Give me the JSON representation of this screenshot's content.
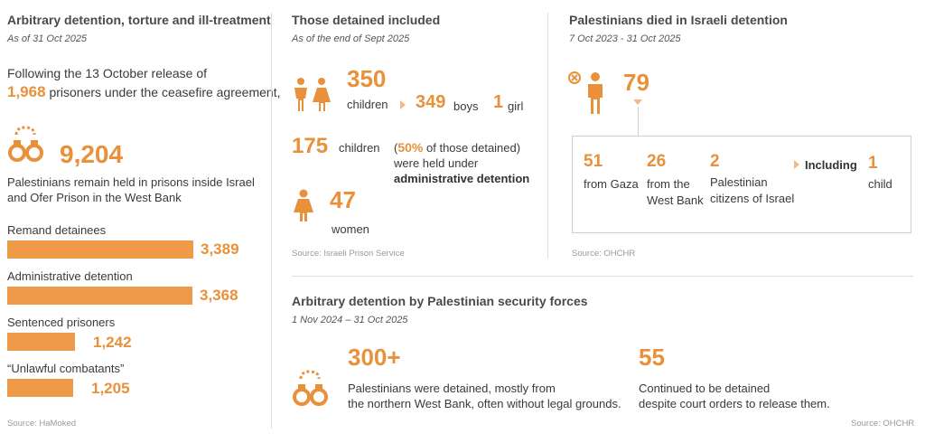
{
  "colors": {
    "accent": "#e8913a",
    "bar": "#ee9a48",
    "text": "#3a3a3a",
    "source": "#9a9a9a"
  },
  "col1": {
    "title": "Arbitrary detention, torture and ill-treatment",
    "subtitle": "As of 31 Oct 2025",
    "intro_line1": "Following the 13 October release of",
    "intro_number": "1,968",
    "intro_line2_rest": "prisoners under the ceasefire agreement,",
    "total": "9,204",
    "total_desc_line1": "Palestinians remain held in prisons inside Israel",
    "total_desc_line2": "and Ofer Prison in the West Bank",
    "chart_data": {
      "type": "bar",
      "categories": [
        "Remand detainees",
        "Administrative detention",
        "Sentenced prisoners",
        "“Unlawful combatants”"
      ],
      "values": [
        3389,
        3368,
        1242,
        1205
      ],
      "value_labels": [
        "3,389",
        "3,368",
        "1,242",
        "1,205"
      ]
    },
    "source": "Source: HaMoked"
  },
  "col2": {
    "title": "Those detained included",
    "subtitle": "As of the end of Sept 2025",
    "children_number": "350",
    "children_label": "children",
    "boys_number": "349",
    "boys_label": "boys",
    "girl_number": "1",
    "girl_label": "girl",
    "admin_number": "175",
    "admin_label": "children",
    "admin_pct": "50%",
    "admin_pct_rest": "of those detained)",
    "admin_open_paren": "(",
    "admin_line2": "were held under",
    "admin_line3": "administrative detention",
    "women_number": "47",
    "women_label": "women",
    "source": "Source: Israeli Prison Service"
  },
  "col3": {
    "title": "Palestinians died in Israeli detention",
    "subtitle": "7 Oct 2023 - 31 Oct 2025",
    "total": "79",
    "gaza_number": "51",
    "gaza_label": "from Gaza",
    "wb_number": "26",
    "wb_label_line1": "from the",
    "wb_label_line2": "West Bank",
    "cit_number": "2",
    "cit_label_line1": "Palestinian",
    "cit_label_line2": "citizens of Israel",
    "including_label": "Including",
    "child_number": "1",
    "child_label": "child",
    "source": "Source: OHCHR"
  },
  "bottom": {
    "title": "Arbitrary detention by Palestinian security forces",
    "subtitle": "1 Nov 2024 – 31 Oct 2025",
    "detained_number": "300+",
    "detained_line1": "Palestinians were detained, mostly from",
    "detained_line2": "the northern West Bank, often without legal grounds.",
    "continued_number": "55",
    "continued_line1": "Continued to be detained",
    "continued_line2": "despite court orders to release them.",
    "source": "Source: OHCHR"
  },
  "icons": [
    "handcuffs-icon",
    "two-children-icon",
    "woman-icon",
    "deceased-person-icon",
    "handcuffs-icon"
  ]
}
